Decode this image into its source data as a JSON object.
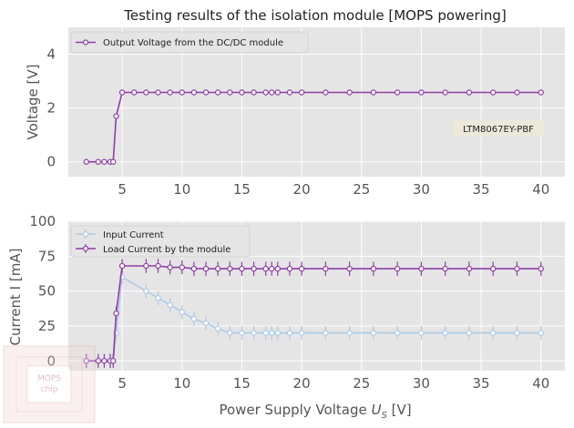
{
  "chart_data": [
    {
      "type": "line",
      "title": "Testing results of the isolation module [MOPS powering]",
      "xlabel": "",
      "ylabel": "Voltage [V]",
      "xlim": [
        0.5,
        42
      ],
      "ylim": [
        -0.55,
        5.0
      ],
      "xticks": [
        5,
        10,
        15,
        20,
        25,
        30,
        35,
        40
      ],
      "yticks": [
        0,
        2,
        4
      ],
      "grid": true,
      "legend_position": "top-left",
      "annotation": "LTM8067EY-PBF",
      "series": [
        {
          "name": "Output Voltage from the DC/DC module",
          "color": "#8e3fa6",
          "x": [
            2,
            3,
            3.5,
            4,
            4.25,
            4.5,
            5,
            6,
            7,
            8,
            9,
            10,
            11,
            12,
            13,
            14,
            15,
            16,
            17,
            17.5,
            18,
            19,
            20,
            22,
            24,
            26,
            28,
            30,
            32,
            34,
            36,
            38,
            40
          ],
          "y": [
            0,
            0,
            0,
            0,
            0,
            1.7,
            2.58,
            2.58,
            2.58,
            2.58,
            2.58,
            2.58,
            2.58,
            2.58,
            2.58,
            2.58,
            2.58,
            2.58,
            2.58,
            2.58,
            2.58,
            2.58,
            2.58,
            2.58,
            2.58,
            2.58,
            2.58,
            2.58,
            2.58,
            2.58,
            2.58,
            2.58,
            2.58
          ]
        }
      ]
    },
    {
      "type": "line",
      "title": "",
      "xlabel": "Power Supply Voltage U_S [V]",
      "xlabel_main": "Power Supply Voltage ",
      "xlabel_var": "U",
      "xlabel_sub": "S",
      "xlabel_unit": " [V]",
      "ylabel": "Current I [mA]",
      "xlim": [
        0.5,
        42
      ],
      "ylim": [
        -7,
        100
      ],
      "xticks": [
        5,
        10,
        15,
        20,
        25,
        30,
        35,
        40
      ],
      "yticks": [
        0,
        25,
        50,
        75,
        100
      ],
      "grid": true,
      "legend_position": "top-left",
      "series": [
        {
          "name": "Input Current",
          "color": "#aecbe6",
          "x": [
            2,
            3,
            3.5,
            4,
            4.25,
            4.5,
            5,
            7,
            8,
            9,
            10,
            11,
            12,
            13,
            14,
            15,
            16,
            17,
            17.5,
            18,
            19,
            20,
            22,
            24,
            26,
            28,
            30,
            32,
            34,
            36,
            38,
            40
          ],
          "y": [
            0,
            0,
            0,
            0,
            0,
            20,
            60,
            50,
            45,
            40,
            35,
            30,
            27,
            23,
            20,
            20,
            20,
            20,
            20,
            20,
            20,
            20,
            20,
            20,
            20,
            20,
            20,
            20,
            20,
            20,
            20,
            20
          ],
          "err": 5
        },
        {
          "name": "Load Current by the module",
          "color": "#8e3fa6",
          "x": [
            2,
            3,
            3.5,
            4,
            4.25,
            4.5,
            5,
            7,
            8,
            9,
            10,
            11,
            12,
            13,
            14,
            15,
            16,
            17,
            17.5,
            18,
            19,
            20,
            22,
            24,
            26,
            28,
            30,
            32,
            34,
            36,
            38,
            40
          ],
          "y": [
            0,
            0,
            0,
            0,
            0,
            34,
            68,
            68,
            68,
            67,
            67,
            66,
            66,
            66,
            66,
            66,
            66,
            66,
            66,
            66,
            66,
            66,
            66,
            66,
            66,
            66,
            66,
            66,
            66,
            66,
            66,
            66
          ],
          "err": 5
        }
      ]
    }
  ],
  "watermark": {
    "line1": "MOPS",
    "line2": "chip"
  }
}
